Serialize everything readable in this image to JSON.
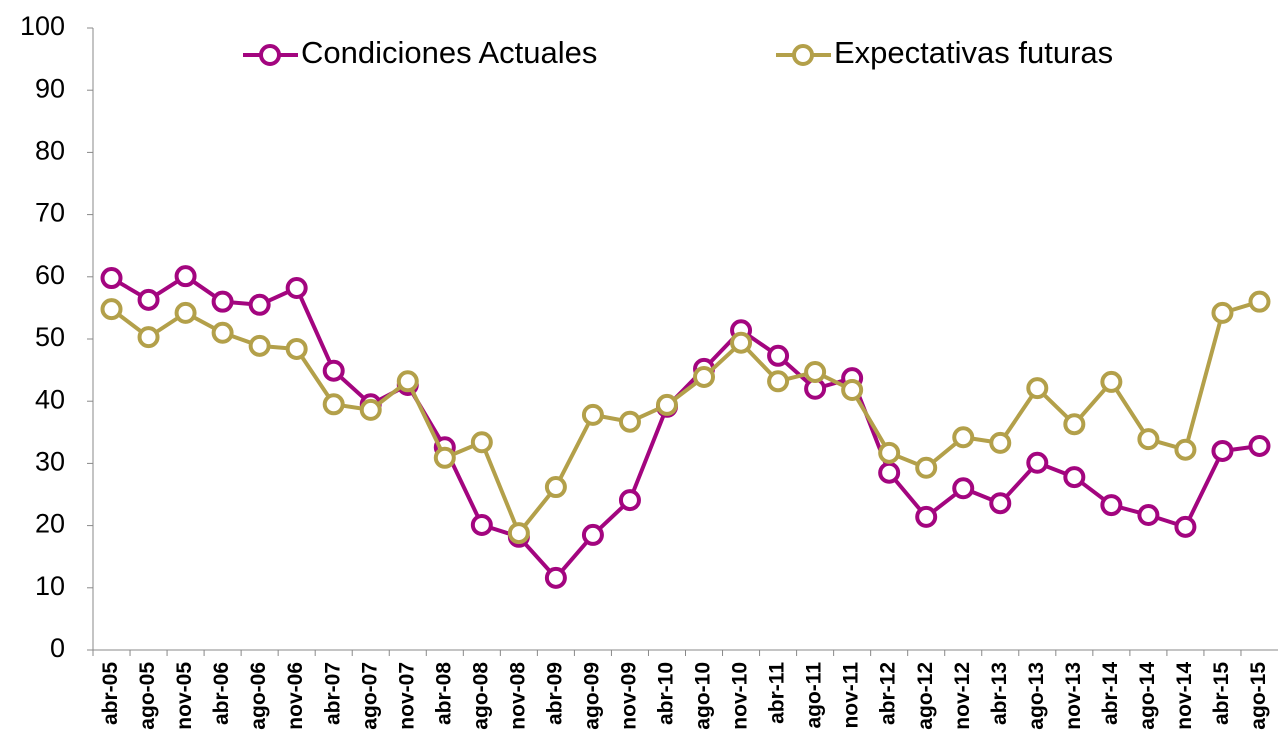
{
  "chart_data": {
    "type": "line",
    "categories": [
      "abr-05",
      "ago-05",
      "nov-05",
      "abr-06",
      "ago-06",
      "nov-06",
      "abr-07",
      "ago-07",
      "nov-07",
      "abr-08",
      "ago-08",
      "nov-08",
      "abr-09",
      "ago-09",
      "nov-09",
      "abr-10",
      "ago-10",
      "nov-10",
      "abr-11",
      "ago-11",
      "nov-11",
      "abr-12",
      "ago-12",
      "nov-12",
      "abr-13",
      "ago-13",
      "nov-13",
      "abr-14",
      "ago-14",
      "nov-14",
      "abr-15",
      "ago-15"
    ],
    "series": [
      {
        "name": "Condiciones Actuales",
        "color": "#a3057f",
        "values": [
          59.8,
          56.3,
          60.1,
          56,
          55.5,
          58.2,
          44.9,
          39.5,
          42.6,
          32.6,
          20.1,
          18.2,
          11.6,
          18.5,
          24.1,
          39.1,
          45.2,
          51.4,
          47.3,
          42,
          43.7,
          28.5,
          21.4,
          26,
          23.6,
          30.1,
          27.8,
          23.3,
          21.7,
          19.8,
          32,
          32.8
        ]
      },
      {
        "name": "Expectativas futuras",
        "color": "#b3a04a",
        "values": [
          54.8,
          50.3,
          54.2,
          51,
          48.9,
          48.4,
          39.5,
          38.6,
          43.2,
          30.9,
          33.4,
          18.8,
          26.2,
          37.8,
          36.7,
          39.4,
          43.9,
          49.4,
          43.2,
          44.7,
          41.8,
          31.7,
          29.3,
          34.2,
          33.3,
          42.1,
          36.3,
          43.1,
          33.9,
          32.2,
          54.2,
          56
        ]
      }
    ],
    "ylim": [
      0,
      100
    ],
    "yticks": [
      0,
      10,
      20,
      30,
      40,
      50,
      60,
      70,
      80,
      90,
      100
    ],
    "grid": false,
    "legend": "top"
  }
}
